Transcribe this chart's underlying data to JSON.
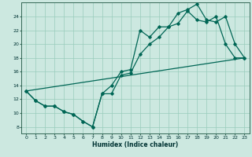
{
  "title": "",
  "xlabel": "Humidex (Indice chaleur)",
  "bg_color": "#cce8e0",
  "grid_color": "#99ccbb",
  "line_color": "#006655",
  "xlim": [
    -0.5,
    23.5
  ],
  "ylim": [
    7,
    26
  ],
  "xticks": [
    0,
    1,
    2,
    3,
    4,
    5,
    6,
    7,
    8,
    9,
    10,
    11,
    12,
    13,
    14,
    15,
    16,
    17,
    18,
    19,
    20,
    21,
    22,
    23
  ],
  "yticks": [
    8,
    10,
    12,
    14,
    16,
    18,
    20,
    22,
    24
  ],
  "line1_x": [
    0,
    1,
    2,
    3,
    4,
    5,
    6,
    7,
    8,
    9,
    10,
    11,
    12,
    13,
    14,
    15,
    16,
    17,
    18,
    19,
    20,
    21,
    22,
    23
  ],
  "line1_y": [
    13.2,
    11.8,
    11.0,
    11.0,
    10.2,
    9.8,
    8.8,
    8.0,
    12.8,
    14.0,
    16.0,
    16.3,
    22.0,
    21.0,
    22.5,
    22.5,
    24.5,
    25.0,
    25.8,
    23.5,
    23.2,
    24.0,
    20.0,
    18.0
  ],
  "line2_x": [
    0,
    1,
    2,
    3,
    4,
    5,
    6,
    7,
    8,
    9,
    10,
    11,
    12,
    13,
    14,
    15,
    16,
    17,
    18,
    19,
    20,
    21,
    22,
    23
  ],
  "line2_y": [
    13.2,
    11.8,
    11.0,
    11.0,
    10.2,
    9.8,
    8.8,
    8.0,
    12.8,
    12.8,
    15.5,
    15.8,
    18.5,
    20.0,
    21.0,
    22.5,
    23.0,
    24.8,
    23.5,
    23.2,
    24.0,
    20.0,
    18.0,
    18.0
  ],
  "line3_x": [
    0,
    23
  ],
  "line3_y": [
    13.2,
    18.0
  ]
}
